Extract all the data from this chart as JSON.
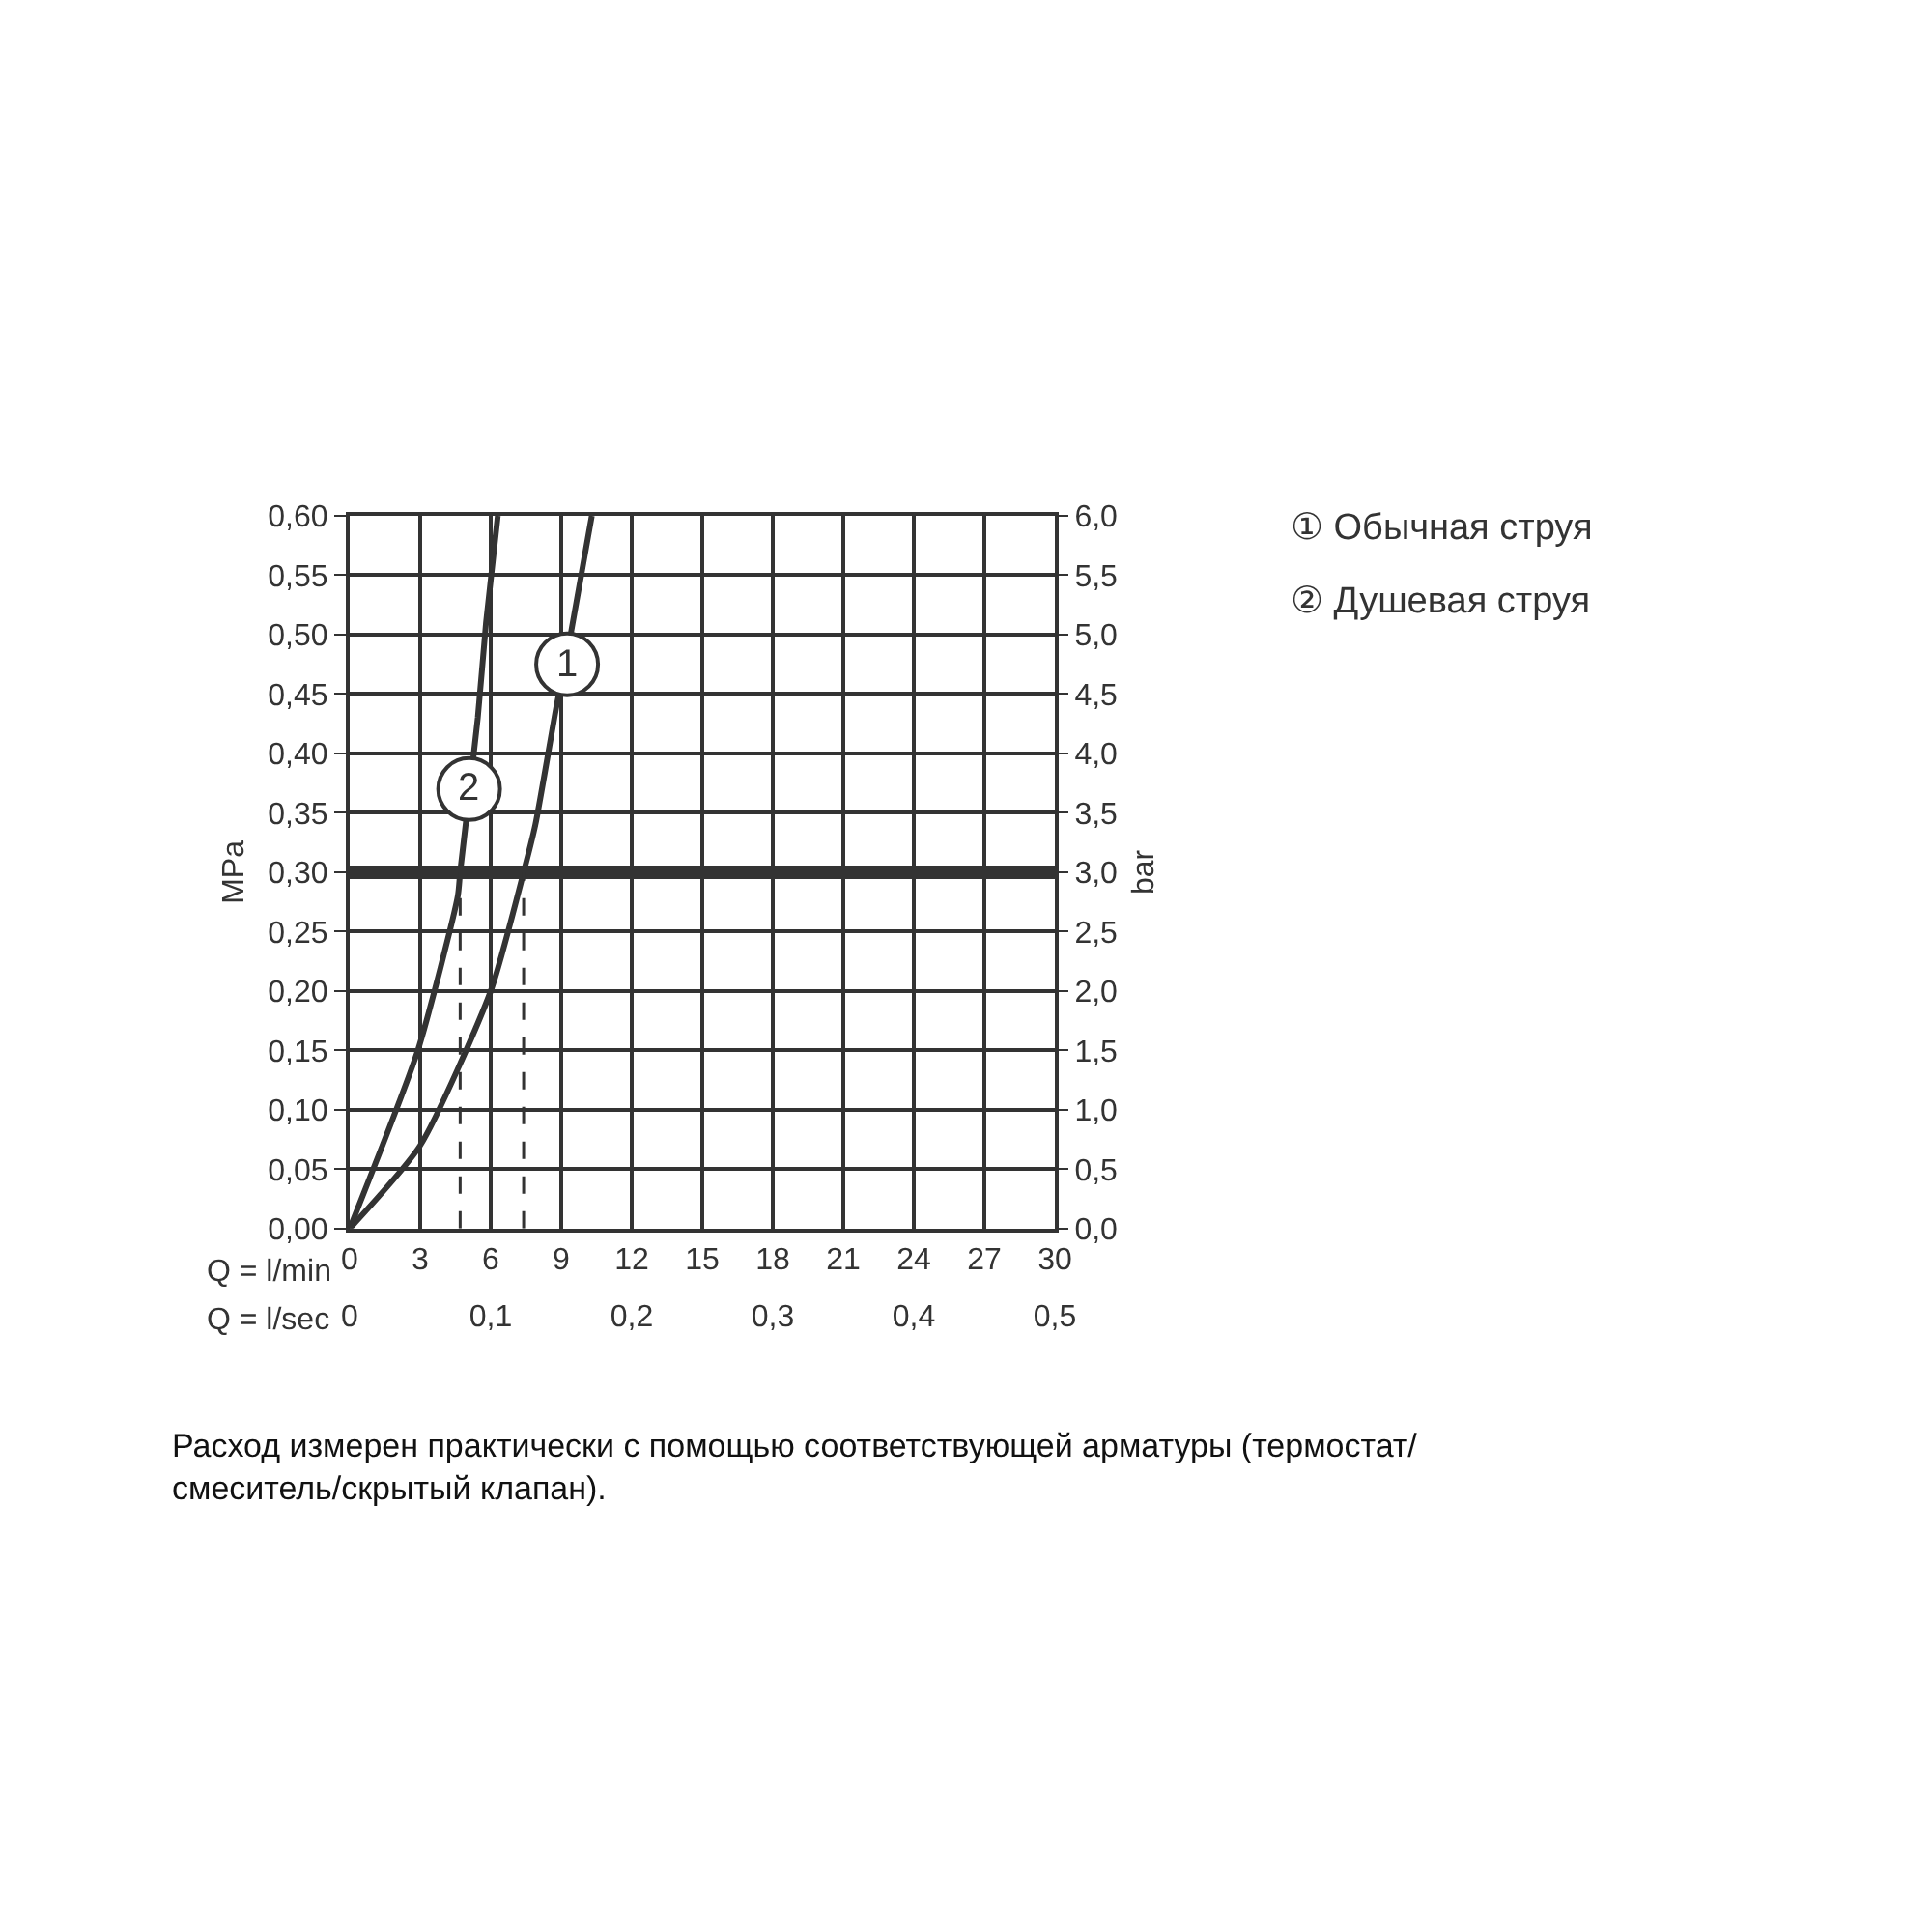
{
  "chart_data": {
    "type": "line",
    "xlabel": "Q = l/min",
    "x2label": "Q = l/sec",
    "ylabel": "MPa",
    "y2label": "bar",
    "series": [
      {
        "name": "① Обычная струя",
        "color": "#333333",
        "x": [
          0,
          3.0,
          6.0,
          7.4,
          7.9,
          8.8,
          9.4,
          10.3
        ],
        "values": [
          0,
          0.07,
          0.2,
          0.3,
          0.34,
          0.44,
          0.5,
          0.6
        ]
      },
      {
        "name": "② Душевая струя",
        "color": "#333333",
        "x": [
          0,
          2.9,
          4.6,
          4.7,
          5.45,
          5.8,
          6.3
        ],
        "values": [
          0,
          0.15,
          0.28,
          0.3,
          0.43,
          0.51,
          0.6
        ]
      }
    ],
    "xlim": [
      0,
      30
    ],
    "xticks": [
      0,
      3,
      6,
      9,
      12,
      15,
      18,
      21,
      24,
      27,
      30
    ],
    "x2lim": [
      0,
      0.5
    ],
    "x2ticks": [
      0,
      {
        "value": 0.1,
        "label": "0,1"
      },
      {
        "value": 0.2,
        "label": "0,2"
      },
      {
        "value": 0.3,
        "label": "0,3"
      },
      {
        "value": 0.4,
        "label": "0,4"
      },
      {
        "value": 0.5,
        "label": "0,5"
      }
    ],
    "ylim": [
      0,
      0.6
    ],
    "yticks": [
      {
        "value": 0,
        "label": "0,00"
      },
      {
        "value": 0.05,
        "label": "0,05"
      },
      {
        "value": 0.1,
        "label": "0,10"
      },
      {
        "value": 0.15,
        "label": "0,15"
      },
      {
        "value": 0.2,
        "label": "0,20"
      },
      {
        "value": 0.25,
        "label": "0,25"
      },
      {
        "value": 0.3,
        "label": "0,30"
      },
      {
        "value": 0.35,
        "label": "0,35"
      },
      {
        "value": 0.4,
        "label": "0,40"
      },
      {
        "value": 0.45,
        "label": "0,45"
      },
      {
        "value": 0.5,
        "label": "0,50"
      },
      {
        "value": 0.55,
        "label": "0,55"
      },
      {
        "value": 0.6,
        "label": "0,60"
      }
    ],
    "y2lim": [
      0,
      6
    ],
    "y2ticks": [
      {
        "value": 0,
        "label": "0,0"
      },
      {
        "value": 0.5,
        "label": "0,5"
      },
      {
        "value": 1,
        "label": "1,0"
      },
      {
        "value": 1.5,
        "label": "1,5"
      },
      {
        "value": 2,
        "label": "2,0"
      },
      {
        "value": 2.5,
        "label": "2,5"
      },
      {
        "value": 3,
        "label": "3,0"
      },
      {
        "value": 3.5,
        "label": "3,5"
      },
      {
        "value": 4,
        "label": "4,0"
      },
      {
        "value": 4.5,
        "label": "4,5"
      },
      {
        "value": 5,
        "label": "5,0"
      },
      {
        "value": 5.5,
        "label": "5,5"
      },
      {
        "value": 6,
        "label": "6,0"
      }
    ],
    "ref_lines": [
      {
        "axis": "y",
        "value": 0.3,
        "color": "#333333",
        "line_style": "solid"
      },
      {
        "axis": "x",
        "value": 4.7,
        "color": "#333333",
        "line_style": "dashed"
      },
      {
        "axis": "x",
        "value": 7.4,
        "color": "#333333",
        "line_style": "dashed"
      }
    ],
    "annotations": [
      {
        "text": "1",
        "x": 9.25,
        "y": 0.475
      },
      {
        "text": "2",
        "x": 5.08,
        "y": 0.37
      },
      "Расход измерен практически с помощью соответствующей арматуры (термостат/\nсмеситель/скрытый клапан)."
    ],
    "grid": true,
    "legend": false,
    "marker": "none",
    "line_style": "solid"
  }
}
